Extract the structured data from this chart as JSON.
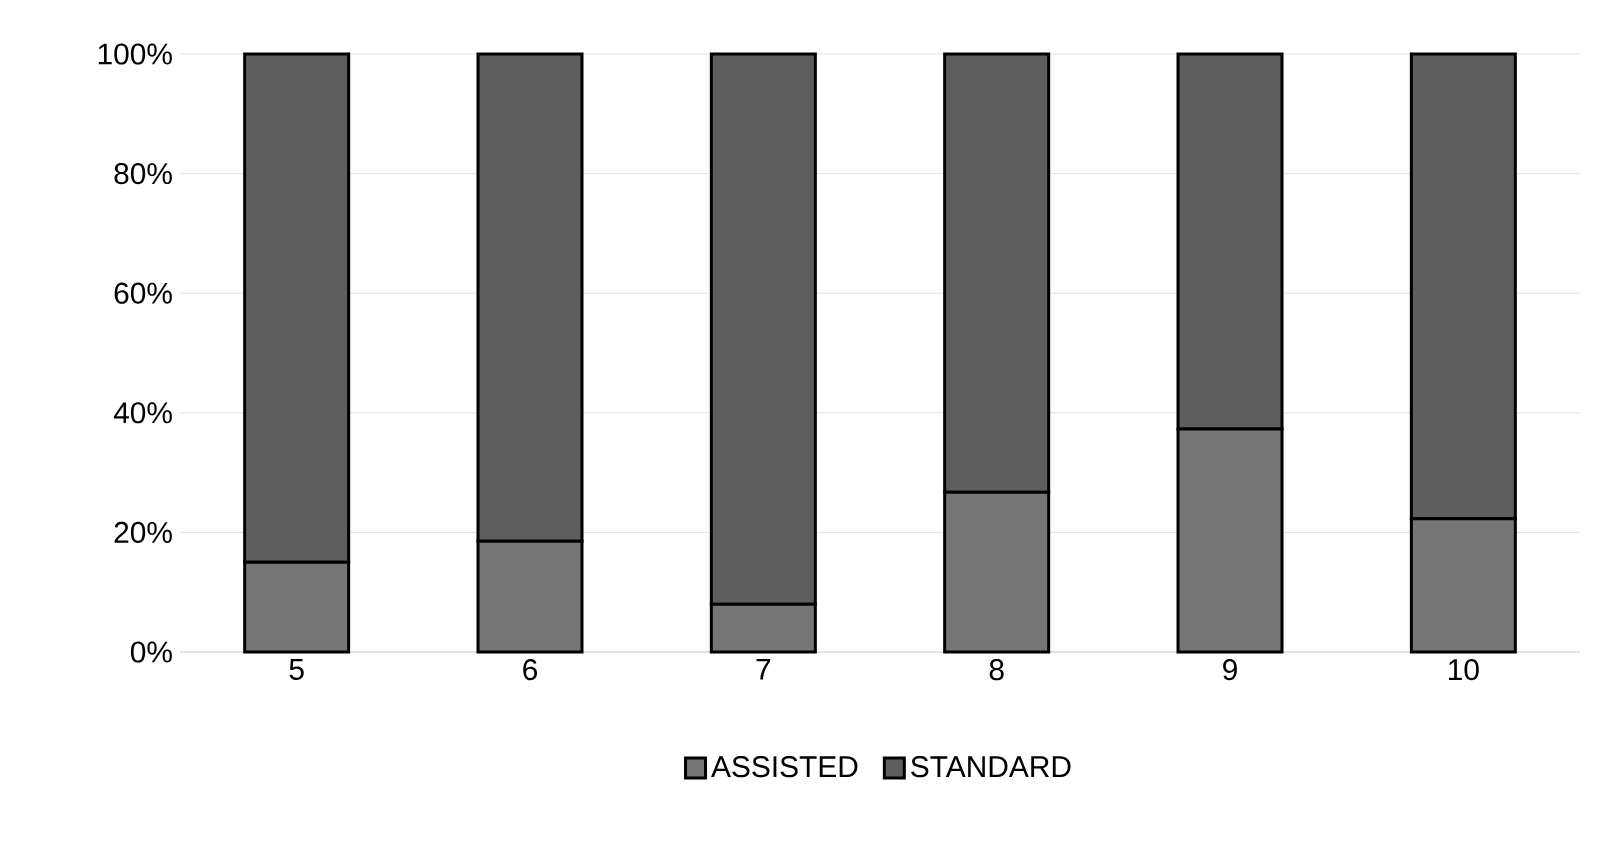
{
  "chart_data": {
    "type": "bar",
    "stacked": true,
    "categories": [
      "5",
      "6",
      "7",
      "8",
      "9",
      "10"
    ],
    "series": [
      {
        "name": "ASSISTED",
        "color": "#767676",
        "values": [
          15,
          18.5,
          8,
          26.7,
          37.3,
          22.3
        ]
      },
      {
        "name": "STANDARD",
        "color": "#5e5e5e",
        "values": [
          85,
          81.5,
          92,
          73.3,
          62.7,
          77.7
        ]
      }
    ],
    "ylim": [
      0,
      100
    ],
    "yticks": [
      {
        "value": 0,
        "label": "0%"
      },
      {
        "value": 20,
        "label": "20%"
      },
      {
        "value": 40,
        "label": "40%"
      },
      {
        "value": 60,
        "label": "60%"
      },
      {
        "value": 80,
        "label": "80%"
      },
      {
        "value": 100,
        "label": "100%"
      }
    ],
    "grid": "y",
    "legend": "bottom"
  }
}
